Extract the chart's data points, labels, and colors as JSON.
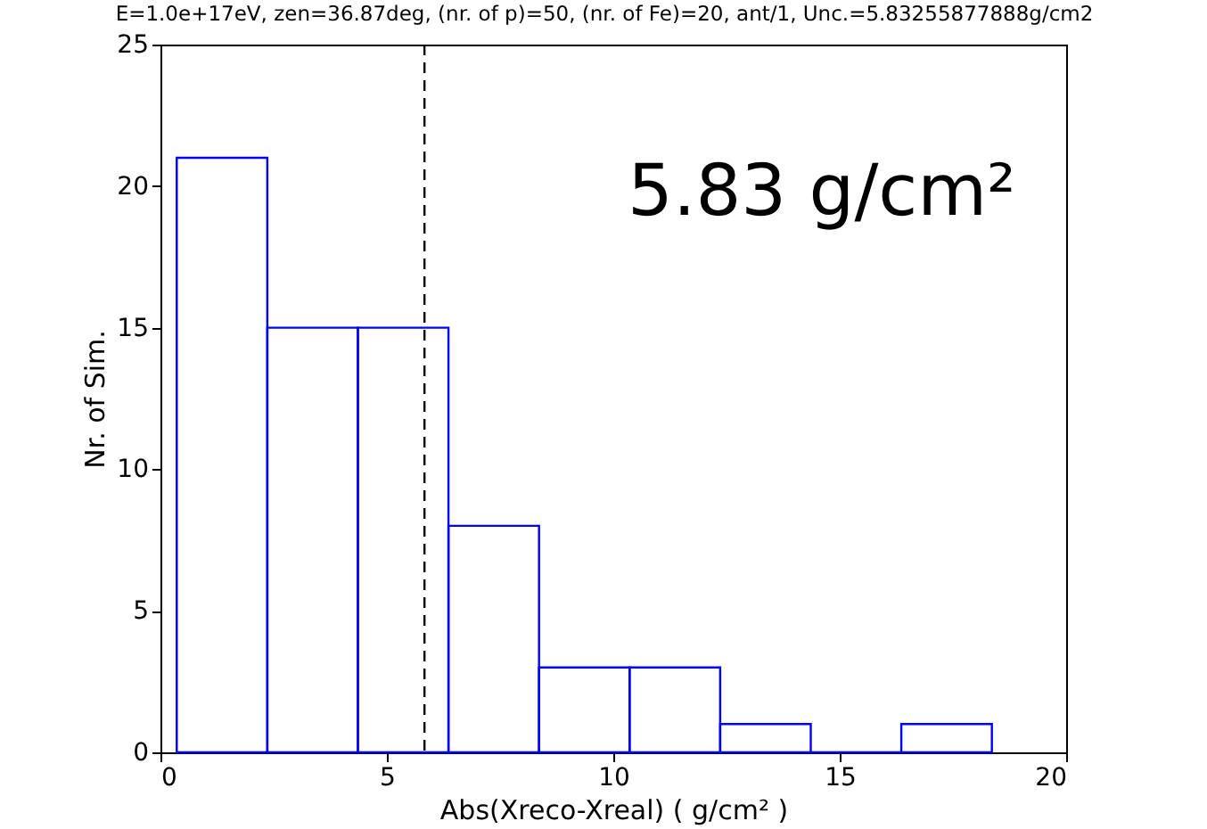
{
  "chart_data": {
    "type": "histogram",
    "title": "E=1.0e+17eV, zen=36.87deg, (nr. of p)=50, (nr. of Fe)=20, ant/1, Unc.=5.83255877888g/cm2",
    "xlabel": "Abs(Xreco-Xreal) ( g/cm² )",
    "ylabel": "Nr. of Sim.",
    "bins": [
      0.36,
      2.36,
      4.36,
      6.36,
      8.36,
      10.36,
      12.36,
      14.36,
      16.36,
      18.36
    ],
    "values": [
      21,
      15,
      15,
      8,
      3,
      3,
      1,
      0,
      1
    ],
    "color": "#0000ff",
    "xlim": [
      0,
      20
    ],
    "xticks": [
      0,
      5,
      10,
      15,
      20
    ],
    "ylim": [
      0,
      25
    ],
    "yticks": [
      0,
      5,
      10,
      15,
      20,
      25
    ],
    "ref_lines": [
      {
        "axis": "x",
        "value": 5.83,
        "line_style": "dashed",
        "color": "#000000"
      }
    ],
    "annotations": [
      "5.83 g/cm²"
    ],
    "grid": false
  }
}
